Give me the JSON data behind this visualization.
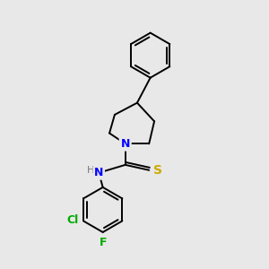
{
  "background_color": "#e8e8e8",
  "line_color": "#000000",
  "N_color": "#0000ff",
  "S_color": "#ccaa00",
  "Cl_color": "#00aa00",
  "F_color": "#00aa00",
  "H_color": "#777777",
  "figsize": [
    3.0,
    3.0
  ],
  "dpi": 100,
  "xlim": [
    0,
    10
  ],
  "ylim": [
    0,
    10
  ]
}
